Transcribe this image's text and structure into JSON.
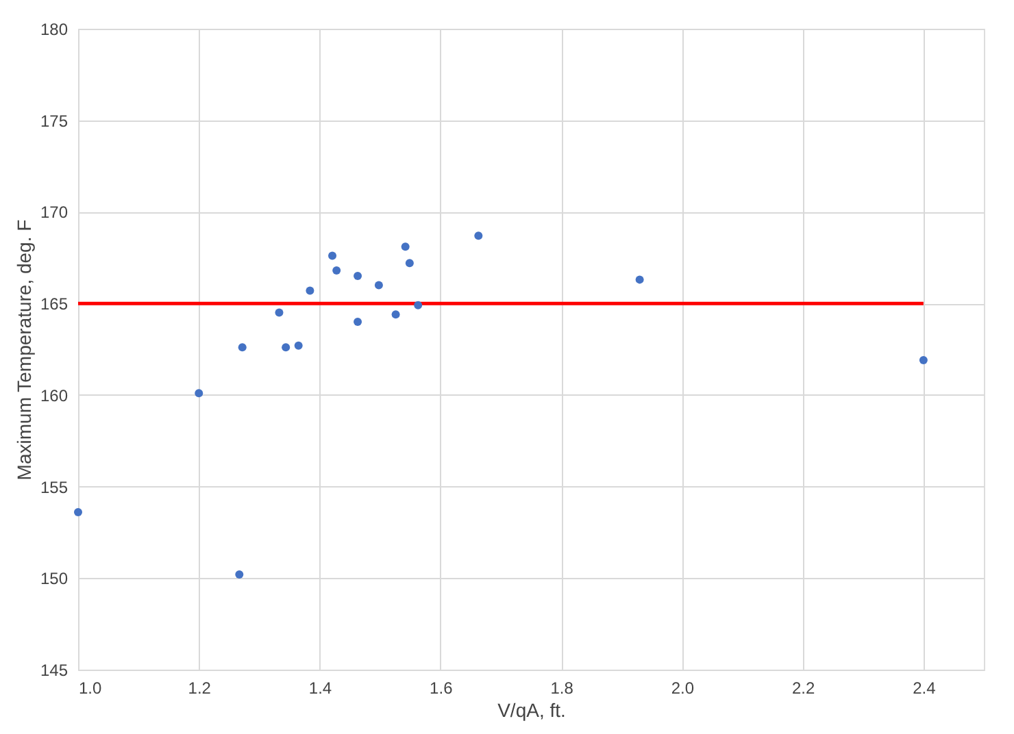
{
  "chart_data": {
    "type": "scatter",
    "xlabel": "V/qA, ft.",
    "ylabel": "Maximum Temperature, deg. F",
    "xlim": [
      1.0,
      2.5
    ],
    "xticks": [
      {
        "value": 1.0,
        "label": "1.0"
      },
      {
        "value": 1.2,
        "label": "1.2"
      },
      {
        "value": 1.4,
        "label": "1.4"
      },
      {
        "value": 1.6,
        "label": "1.6"
      },
      {
        "value": 1.8,
        "label": "1.8"
      },
      {
        "value": 2.0,
        "label": "2.0"
      },
      {
        "value": 2.2,
        "label": "2.2"
      },
      {
        "value": 2.4,
        "label": "2.4"
      }
    ],
    "ylim": [
      145,
      180
    ],
    "yticks": [
      145,
      150,
      155,
      160,
      165,
      170,
      175,
      180
    ],
    "grid": true,
    "series": [
      {
        "color": "#4472c4",
        "marker": "circle",
        "x": [
          1.0,
          1.2,
          1.267,
          1.272,
          1.333,
          1.344,
          1.365,
          1.384,
          1.421,
          1.428,
          1.463,
          1.463,
          1.498,
          1.526,
          1.542,
          1.549,
          1.563,
          1.663,
          1.93,
          2.4
        ],
        "values": [
          153.6,
          160.1,
          150.2,
          162.6,
          164.5,
          162.6,
          162.7,
          165.7,
          167.6,
          166.8,
          166.5,
          164.0,
          166.0,
          164.4,
          168.1,
          167.2,
          164.9,
          168.7,
          166.3,
          161.9
        ]
      },
      {
        "type": "line",
        "color": "#ff0000",
        "line_style": "solid",
        "x": [
          1.0,
          2.4
        ],
        "values": [
          165,
          165
        ]
      }
    ]
  }
}
